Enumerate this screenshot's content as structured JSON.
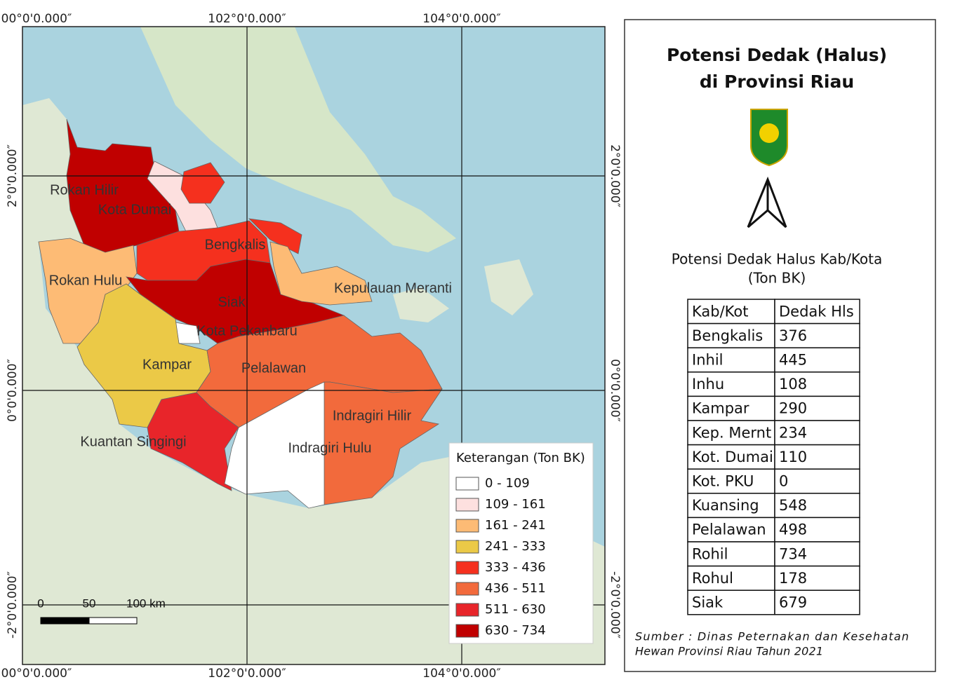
{
  "map": {
    "coords_top": [
      "00°0'0.000″",
      "102°0'0.000″",
      "104°0'0.000″"
    ],
    "coords_bottom": [
      "00°0'0.000″",
      "102°0'0.000″",
      "104°0'0.000″"
    ],
    "coords_left": [
      "2°0'0.000″",
      "0°0'0.000″",
      "-2°0'0.000″"
    ],
    "coords_right": [
      "2°0'0.000″",
      "0°0'0.000″",
      "-2°0'0.000″"
    ],
    "regions": [
      "Rokan Hilir",
      "Kota Dumai",
      "Bengkalis",
      "Rokan Hulu",
      "Siak",
      "Kepulauan Meranti",
      "Kota Pekanbaru",
      "Kampar",
      "Pelalawan",
      "Indragiri Hilir",
      "Kuantan Singingi",
      "Indragiri Hulu"
    ],
    "scale_labels": [
      "0",
      "50",
      "100 km"
    ],
    "legend": {
      "title": "Keterangan (Ton BK)",
      "classes": [
        {
          "label": "0 - 109",
          "color": "#ffffff"
        },
        {
          "label": "109 - 161",
          "color": "#fde0df"
        },
        {
          "label": "161 - 241",
          "color": "#fdbb75"
        },
        {
          "label": "241 - 333",
          "color": "#ebc947"
        },
        {
          "label": "333 - 436",
          "color": "#f5301e"
        },
        {
          "label": "436 - 511",
          "color": "#f26a3c"
        },
        {
          "label": "511 - 630",
          "color": "#e8252a"
        },
        {
          "label": "630 - 734",
          "color": "#c00000"
        }
      ]
    }
  },
  "panel": {
    "title": [
      "Potensi Dedak (Halus)",
      "di Provinsi Riau"
    ],
    "table_title": [
      "Potensi Dedak Halus Kab/Kota",
      "(Ton BK)"
    ],
    "table": {
      "header": [
        "Kab/Kot",
        "Dedak Hls"
      ],
      "rows": [
        [
          "Bengkalis",
          "376"
        ],
        [
          "Inhil",
          "445"
        ],
        [
          "Inhu",
          "108"
        ],
        [
          "Kampar",
          "290"
        ],
        [
          "Kep. Mernt",
          "234"
        ],
        [
          "Kot. Dumai",
          "110"
        ],
        [
          "Kot. PKU",
          "0"
        ],
        [
          "Kuansing",
          "548"
        ],
        [
          "Pelalawan",
          "498"
        ],
        [
          "Rohil",
          "734"
        ],
        [
          "Rohul",
          "178"
        ],
        [
          "Siak",
          "679"
        ]
      ]
    },
    "source": [
      "Sumber : Dinas Peternakan dan Kesehatan",
      "Hewan Provinsi Riau Tahun 2021"
    ]
  }
}
